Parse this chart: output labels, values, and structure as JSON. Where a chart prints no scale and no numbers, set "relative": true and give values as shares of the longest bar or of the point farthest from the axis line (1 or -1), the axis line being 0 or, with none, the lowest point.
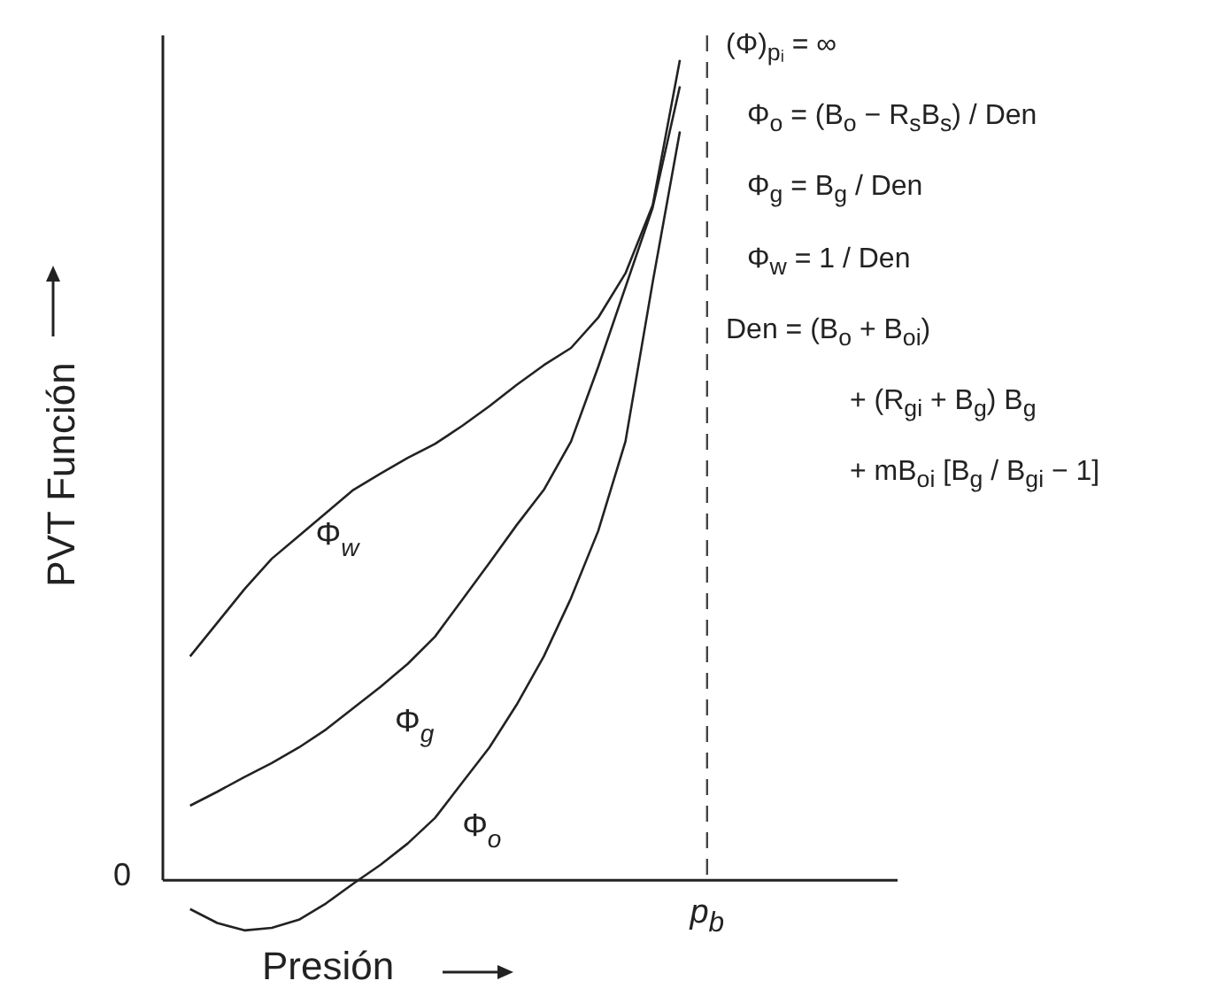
{
  "chart_data": {
    "type": "line",
    "relative": true,
    "xlabel": "Presión",
    "ylabel": "PVT Función",
    "legend": false,
    "marker": "none",
    "line_style": "solid",
    "categories": [
      null,
      null,
      null,
      null,
      null,
      null,
      null,
      null,
      null,
      null,
      null,
      null,
      null,
      null,
      null,
      null,
      null,
      null,
      null,
      null,
      null,
      null,
      null,
      null,
      null,
      null,
      null,
      null
    ],
    "series": [
      {
        "name": "Φ$_{w}$",
        "color": "#222222",
        "values": [
          null,
          0.273,
          0.314,
          0.355,
          0.392,
          0.42,
          0.448,
          0.476,
          0.496,
          0.515,
          0.532,
          0.554,
          0.578,
          0.604,
          0.628,
          0.649,
          0.686,
          0.74,
          0.823,
          1,
          null,
          null,
          null,
          null,
          null,
          null,
          null,
          null
        ]
      },
      {
        "name": "Φ$_{g}$",
        "color": "#222222",
        "values": [
          null,
          0.091,
          0.108,
          0.126,
          0.143,
          0.162,
          0.184,
          0.21,
          0.236,
          0.264,
          0.297,
          0.342,
          0.387,
          0.433,
          0.476,
          0.535,
          0.626,
          0.723,
          0.82,
          0.968,
          null,
          null,
          null,
          null,
          null,
          null,
          null,
          null
        ]
      },
      {
        "name": "Φ$_{o}$",
        "color": "#222222",
        "values": [
          null,
          -0.035,
          -0.052,
          -0.061,
          -0.058,
          -0.048,
          -0.028,
          -0.004,
          0.019,
          0.045,
          0.076,
          0.119,
          0.162,
          0.214,
          0.273,
          0.344,
          0.426,
          0.535,
          0.729,
          0.913,
          null,
          null,
          null,
          null,
          null,
          null,
          null,
          null
        ]
      }
    ],
    "annotations": [
      "0",
      "p$_{b}$",
      "(Φ)$_{pᵢ}$ = ∞",
      "Φ$_{o}$ = (B$_{o}$ − R$_{s}$B$_{s}$) / Den",
      "Φ$_{g}$ = B$_{g}$ / Den",
      "Φ$_{w}$ = 1 / Den",
      "Den = (B$_{o}$ + B$_{oi}$)",
      "+ (R$_{gi}$ + B$_{g}$) B$_{g}$",
      "+ mB$_{oi}$ [B$_{g}$ / B$_{gi}$ − 1]"
    ]
  }
}
